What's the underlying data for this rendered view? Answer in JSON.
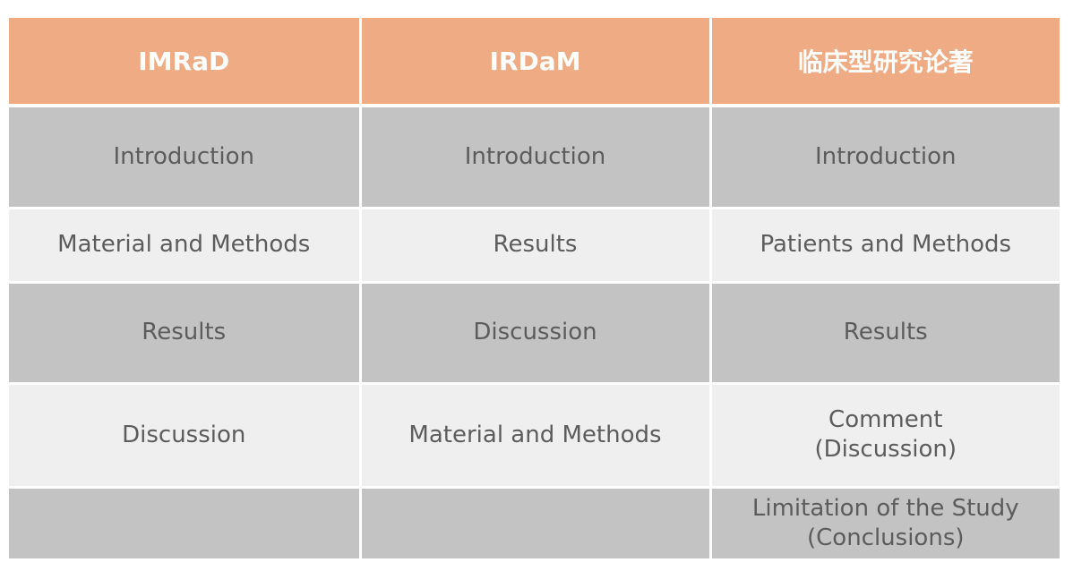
{
  "headers": [
    "IMRaD",
    "IRDaM",
    "临床型研究论著"
  ],
  "rows": [
    {
      "imrad": "Introduction",
      "irdam": "Introduction",
      "clinical": "Introduction"
    },
    {
      "imrad": "Material and Methods",
      "irdam": "Results",
      "clinical": "Patients and Methods"
    },
    {
      "imrad": "Results",
      "irdam": "Discussion",
      "clinical": "Results"
    },
    {
      "imrad": "Discussion",
      "irdam": "Material and Methods",
      "clinical_line1": "Comment",
      "clinical_line2": "(Discussion)"
    },
    {
      "imrad": "",
      "irdam": "",
      "clinical_line1": "Limitation of the Study",
      "clinical_line2": "(Conclusions)"
    }
  ],
  "colors": {
    "header_bg": "#eeab84",
    "header_text": "#ffffff",
    "row_dark": "#c3c3c3",
    "row_light": "#efefef",
    "body_text": "#5c5c5c"
  }
}
